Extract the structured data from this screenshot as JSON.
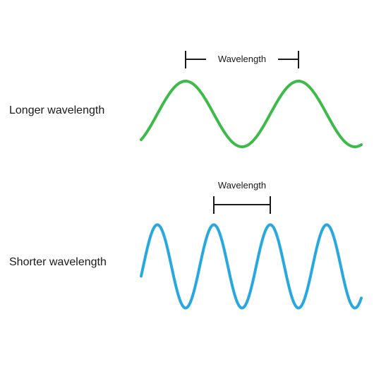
{
  "rows": [
    {
      "label": "Longer wavelength",
      "wavelength_text": "Wavelength",
      "color": "#3dba4a",
      "relative_wavelength": 2
    },
    {
      "label": "Shorter wavelength",
      "wavelength_text": "Wavelength",
      "color": "#29a8e0",
      "relative_wavelength": 1
    }
  ],
  "bracket_color": "#1a1a1a"
}
